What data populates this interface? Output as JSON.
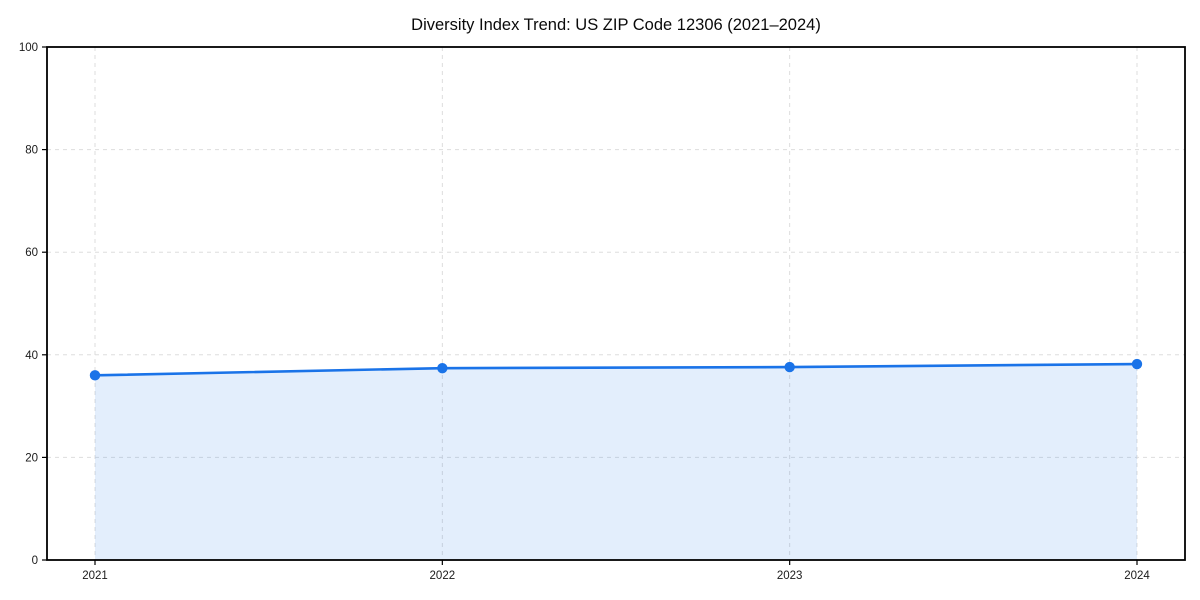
{
  "chart_data": {
    "type": "area",
    "title": "Diversity Index Trend: US ZIP Code 12306 (2021–2024)",
    "x": [
      "2021",
      "2022",
      "2023",
      "2024"
    ],
    "values": [
      36.0,
      37.4,
      37.6,
      38.2
    ],
    "series_name": "Diversity Index",
    "xlabel": "",
    "ylabel": "",
    "ylim": [
      0,
      100
    ],
    "yticks": [
      0,
      20,
      40,
      60,
      80,
      100
    ],
    "grid": "dashed-both-axes",
    "legend": "none",
    "colors": {
      "line": "#1a73e8",
      "marker": "#1a73e8",
      "fill": "#1a73e8",
      "fill_opacity": 0.12,
      "grid": "#dddddd",
      "axis": "#000000",
      "text": "#1a1a1a",
      "background": "#ffffff"
    }
  }
}
